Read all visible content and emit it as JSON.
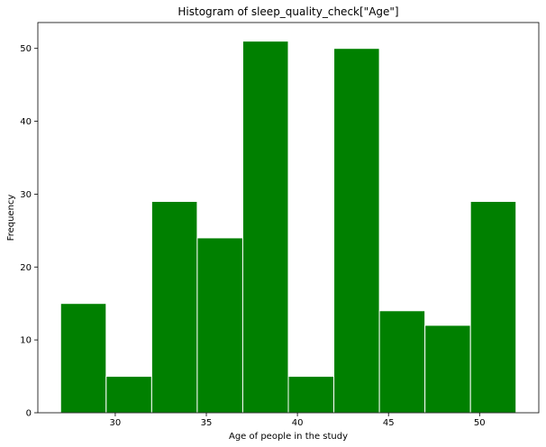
{
  "chart_data": {
    "type": "bar",
    "title": "Histogram of sleep_quality_check[\"Age\"]",
    "xlabel": "Age of people in the study",
    "ylabel": "Frequency",
    "bin_edges": [
      27.0,
      29.5,
      32.0,
      34.5,
      37.0,
      39.5,
      42.0,
      44.5,
      47.0,
      49.5,
      52.0
    ],
    "values": [
      15,
      5,
      29,
      24,
      51,
      5,
      50,
      14,
      12,
      29
    ],
    "xlim": [
      25.75,
      53.25
    ],
    "ylim": [
      0,
      53.55
    ],
    "x_ticks": [
      30,
      35,
      40,
      45,
      50
    ],
    "y_ticks": [
      0,
      10,
      20,
      30,
      40,
      50
    ],
    "bar_color": "#008000",
    "edge_color": "#ffffff",
    "grid": false
  }
}
